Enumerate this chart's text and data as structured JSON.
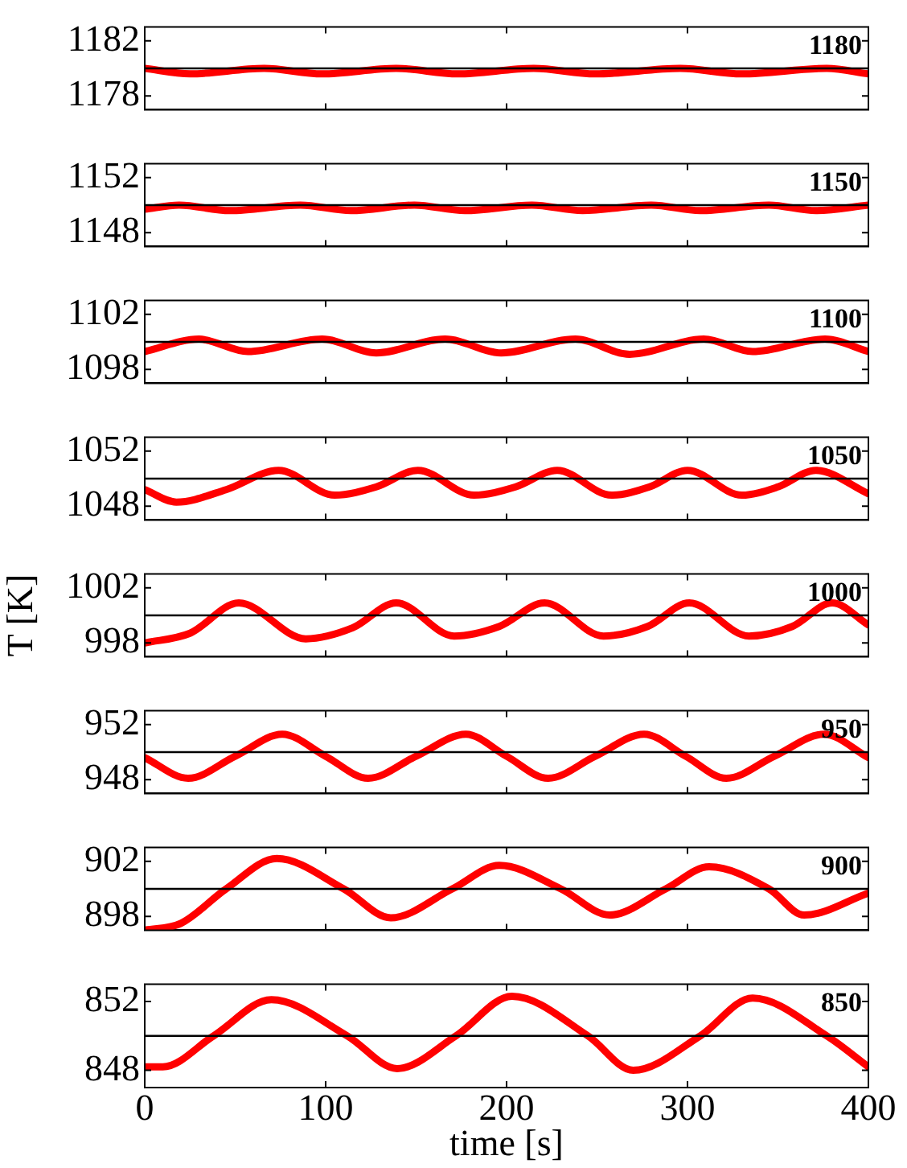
{
  "chart_data": [
    {
      "type": "line",
      "x": [
        0,
        25,
        66,
        98,
        139,
        173,
        215,
        249,
        296,
        330,
        377,
        400
      ],
      "values": [
        1180.0,
        1179.6,
        1180.0,
        1179.6,
        1180.0,
        1179.6,
        1180.0,
        1179.6,
        1180.0,
        1179.6,
        1180.0,
        1179.6
      ],
      "color": "#ff0000",
      "xlim": [
        0,
        400
      ],
      "xticks": [
        0,
        100,
        200,
        300,
        400
      ],
      "ylim": [
        1177,
        1183
      ],
      "yticks": [
        1178,
        1182
      ],
      "ref_lines": [
        {
          "axis": "y",
          "value": 1180,
          "color": "#000000"
        }
      ],
      "annotations": [
        "1180"
      ],
      "tick_labels": "y"
    },
    {
      "type": "line",
      "x": [
        0,
        19,
        47,
        86,
        114,
        149,
        177,
        214,
        242,
        280,
        307,
        345,
        371,
        400
      ],
      "values": [
        1149.7,
        1150.0,
        1149.6,
        1150.0,
        1149.6,
        1150.0,
        1149.6,
        1150.0,
        1149.6,
        1150.0,
        1149.6,
        1150.0,
        1149.6,
        1150.0
      ],
      "color": "#ff0000",
      "xlim": [
        0,
        400
      ],
      "xticks": [
        0,
        100,
        200,
        300,
        400
      ],
      "ylim": [
        1147,
        1153
      ],
      "yticks": [
        1148,
        1152
      ],
      "ref_lines": [
        {
          "axis": "y",
          "value": 1150,
          "color": "#000000"
        }
      ],
      "annotations": [
        "1150"
      ],
      "tick_labels": "y"
    },
    {
      "type": "line",
      "x": [
        0,
        30,
        57,
        98,
        128,
        166,
        197,
        238,
        268,
        309,
        336,
        376,
        400
      ],
      "values": [
        1099.3,
        1100.2,
        1099.3,
        1100.2,
        1099.2,
        1100.2,
        1099.2,
        1100.2,
        1099.1,
        1100.2,
        1099.3,
        1100.2,
        1099.3
      ],
      "color": "#ff0000",
      "xlim": [
        0,
        400
      ],
      "xticks": [
        0,
        100,
        200,
        300,
        400
      ],
      "ylim": [
        1097,
        1103
      ],
      "yticks": [
        1098,
        1102
      ],
      "ref_lines": [
        {
          "axis": "y",
          "value": 1100,
          "color": "#000000"
        }
      ],
      "annotations": [
        "1100"
      ],
      "tick_labels": "y"
    },
    {
      "type": "line",
      "x": [
        0,
        17.5,
        45,
        74,
        105,
        128,
        151,
        182,
        205,
        228,
        258,
        279,
        300,
        330,
        350,
        371,
        400
      ],
      "values": [
        1049.2,
        1048.3,
        1049.2,
        1050.6,
        1048.8,
        1049.4,
        1050.6,
        1048.8,
        1049.4,
        1050.6,
        1048.8,
        1049.4,
        1050.6,
        1048.8,
        1049.4,
        1050.6,
        1048.9
      ],
      "color": "#ff0000",
      "xlim": [
        0,
        400
      ],
      "xticks": [
        0,
        100,
        200,
        300,
        400
      ],
      "ylim": [
        1047,
        1053
      ],
      "yticks": [
        1048,
        1052
      ],
      "ref_lines": [
        {
          "axis": "y",
          "value": 1050,
          "color": "#000000"
        }
      ],
      "annotations": [
        "1050"
      ],
      "tick_labels": "y"
    },
    {
      "type": "line",
      "x": [
        0,
        25,
        52,
        89,
        115,
        139,
        171,
        196,
        221,
        253.5,
        278,
        301,
        334,
        358,
        380,
        400
      ],
      "values": [
        998.0,
        998.7,
        1000.9,
        998.3,
        999.1,
        1000.9,
        998.5,
        999.2,
        1000.9,
        998.5,
        999.2,
        1000.9,
        998.5,
        999.2,
        1000.9,
        999.3
      ],
      "color": "#ff0000",
      "xlim": [
        0,
        400
      ],
      "xticks": [
        0,
        100,
        200,
        300,
        400
      ],
      "ylim": [
        997,
        1003
      ],
      "yticks": [
        998,
        1002
      ],
      "ref_lines": [
        {
          "axis": "y",
          "value": 1000,
          "color": "#000000"
        }
      ],
      "annotations": [
        "1000"
      ],
      "tick_labels": "y",
      "ylabel": "T [K]"
    },
    {
      "type": "line",
      "x": [
        0,
        24,
        50,
        76,
        100,
        123.5,
        150,
        177.5,
        200,
        223,
        249,
        276,
        299,
        321.5,
        348,
        375.5,
        400
      ],
      "values": [
        949.6,
        948.1,
        949.7,
        951.3,
        949.7,
        948.1,
        949.7,
        951.3,
        949.7,
        948.1,
        949.7,
        951.3,
        949.7,
        948.1,
        949.7,
        951.3,
        949.6
      ],
      "color": "#ff0000",
      "xlim": [
        0,
        400
      ],
      "xticks": [
        0,
        100,
        200,
        300,
        400
      ],
      "ylim": [
        947,
        953
      ],
      "yticks": [
        948,
        952
      ],
      "ref_lines": [
        {
          "axis": "y",
          "value": 950,
          "color": "#000000"
        }
      ],
      "annotations": [
        "950"
      ],
      "tick_labels": "y"
    },
    {
      "type": "line",
      "x": [
        0,
        20,
        45,
        73,
        110,
        136,
        170,
        196,
        230,
        257,
        288,
        312,
        345,
        364.5,
        400
      ],
      "values": [
        897.0,
        897.5,
        900.0,
        902.2,
        900.0,
        897.9,
        900.0,
        901.7,
        900.0,
        898.1,
        900.0,
        901.6,
        900.0,
        898.1,
        899.7
      ],
      "color": "#ff0000",
      "xlim": [
        0,
        400
      ],
      "xticks": [
        0,
        100,
        200,
        300,
        400
      ],
      "ylim": [
        897,
        903
      ],
      "yticks": [
        898,
        902
      ],
      "ref_lines": [
        {
          "axis": "y",
          "value": 900,
          "color": "#000000"
        }
      ],
      "annotations": [
        "900"
      ],
      "tick_labels": "y"
    },
    {
      "type": "line",
      "x": [
        0,
        10,
        38,
        70,
        112,
        139.5,
        172,
        203,
        245,
        270,
        307,
        336,
        377,
        400
      ],
      "values": [
        848.2,
        848.2,
        850.0,
        852.1,
        850.0,
        848.1,
        850.0,
        852.3,
        850.0,
        848.0,
        850.0,
        852.2,
        850.0,
        848.2
      ],
      "color": "#ff0000",
      "xlim": [
        0,
        400
      ],
      "xticks": [
        0,
        100,
        200,
        300,
        400
      ],
      "ylim": [
        847,
        853
      ],
      "yticks": [
        848,
        852
      ],
      "ref_lines": [
        {
          "axis": "y",
          "value": 850,
          "color": "#000000"
        }
      ],
      "annotations": [
        "850"
      ],
      "xlabel": "time [s]"
    }
  ]
}
